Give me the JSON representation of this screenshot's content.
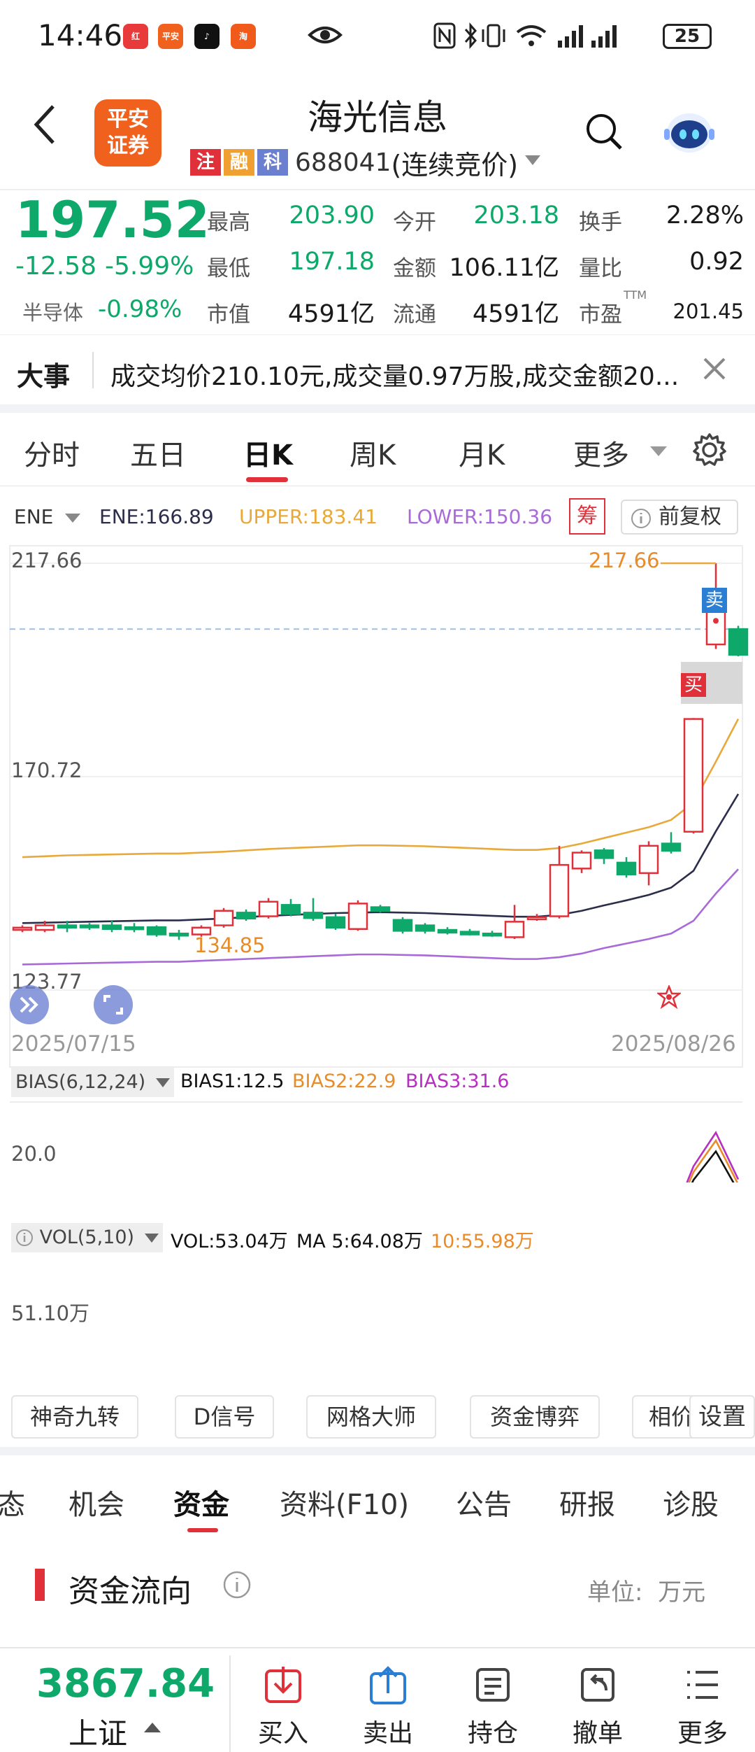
{
  "status": {
    "time": "14:46",
    "battery": "25",
    "app_icons": [
      {
        "name": "app-icon-1",
        "text": "红",
        "color": "#e83a3a"
      },
      {
        "name": "app-icon-2",
        "text": "平安",
        "color": "#f0611e"
      },
      {
        "name": "app-icon-3",
        "text": "♪",
        "color": "#111111"
      },
      {
        "name": "app-icon-4",
        "text": "淘",
        "color": "#f05a1a"
      }
    ]
  },
  "header": {
    "logo_line1": "平安",
    "logo_line2": "证券",
    "title": "海光信息",
    "tags": [
      "注",
      "融",
      "科"
    ],
    "code": "688041",
    "mode": "(连续竞价)"
  },
  "quote": {
    "price": "197.52",
    "change": "-12.58",
    "change_pct": "-5.99%",
    "sector": "半导体",
    "sector_pct": "-0.98%",
    "labels": {
      "high": "最高",
      "low": "最低",
      "mcap": "市值",
      "open": "今开",
      "amount": "金额",
      "float": "流通",
      "turnover": "换手",
      "vol_ratio": "量比",
      "pe": "市盈"
    },
    "values": {
      "high": "203.90",
      "low": "197.18",
      "mcap": "4591亿",
      "open": "203.18",
      "amount": "106.11亿",
      "float": "4591亿",
      "turnover": "2.28%",
      "vol_ratio": "0.92",
      "pe": "201.45"
    },
    "pe_sup": "TTM"
  },
  "news": {
    "label": "大事",
    "text": "成交均价210.10元,成交量0.97万股,成交金额20..."
  },
  "ktabs": [
    {
      "label": "分时",
      "active": false
    },
    {
      "label": "五日",
      "active": false
    },
    {
      "label": "日K",
      "active": true
    },
    {
      "label": "周K",
      "active": false
    },
    {
      "label": "月K",
      "active": false
    },
    {
      "label": "更多",
      "active": false
    }
  ],
  "chart": {
    "indicator": "ENE",
    "ene": "ENE:166.89",
    "upper": "UPPER:183.41",
    "lower": "LOWER:150.36",
    "chou": "筹",
    "fuquan": "前复权",
    "y_high": "217.66",
    "y_mid": "170.72",
    "y_low": "123.77",
    "high_label": "217.66",
    "low_label": "134.85",
    "date_start": "2025/07/15",
    "date_end": "2025/08/26",
    "sell_tag": "卖",
    "buy_tag": "买",
    "colors": {
      "upper": "#e8a93a",
      "ene": "#2b2d4a",
      "lower": "#a86ad8",
      "up": "#e0313b",
      "down": "#0fa86b"
    }
  },
  "chart_data": [
    {
      "type": "candlestick",
      "title": "",
      "x_range": [
        "2025/07/15",
        "2025/08/26"
      ],
      "ylim": [
        123.77,
        217.66
      ],
      "series": [
        {
          "name": "ENE",
          "current": 166.89
        },
        {
          "name": "UPPER",
          "current": 183.41
        },
        {
          "name": "LOWER",
          "current": 150.36
        }
      ],
      "candles": [
        {
          "o": 137,
          "c": 137.5,
          "h": 138,
          "l": 136.5
        },
        {
          "o": 137,
          "c": 138,
          "h": 139,
          "l": 136.5
        },
        {
          "o": 138,
          "c": 137.5,
          "h": 139,
          "l": 136.5
        },
        {
          "o": 138,
          "c": 137.8,
          "h": 138.5,
          "l": 137
        },
        {
          "o": 138,
          "c": 137.2,
          "h": 139,
          "l": 136.5
        },
        {
          "o": 137.6,
          "c": 137.2,
          "h": 138.5,
          "l": 136.5
        },
        {
          "o": 137.6,
          "c": 136,
          "h": 138,
          "l": 135.5
        },
        {
          "o": 136.2,
          "c": 135.8,
          "h": 137,
          "l": 134.8
        },
        {
          "o": 136,
          "c": 137.5,
          "h": 138,
          "l": 135.5
        },
        {
          "o": 138,
          "c": 141.2,
          "h": 141.8,
          "l": 137.5
        },
        {
          "o": 140.8,
          "c": 139.5,
          "h": 141.5,
          "l": 139
        },
        {
          "o": 140,
          "c": 143.2,
          "h": 144,
          "l": 139.5
        },
        {
          "o": 142.5,
          "c": 140.5,
          "h": 143.8,
          "l": 140
        },
        {
          "o": 140.8,
          "c": 139.6,
          "h": 144,
          "l": 139
        },
        {
          "o": 139.8,
          "c": 137.5,
          "h": 140.5,
          "l": 137
        },
        {
          "o": 137.2,
          "c": 142.8,
          "h": 143.5,
          "l": 136.8
        },
        {
          "o": 142,
          "c": 141.2,
          "h": 142.5,
          "l": 140.8
        },
        {
          "o": 139.2,
          "c": 136.8,
          "h": 139.8,
          "l": 136.2
        },
        {
          "o": 138,
          "c": 136.8,
          "h": 138.5,
          "l": 136.2
        },
        {
          "o": 137,
          "c": 136.4,
          "h": 137.6,
          "l": 136
        },
        {
          "o": 136.6,
          "c": 136,
          "h": 137.2,
          "l": 135.8
        },
        {
          "o": 136.2,
          "c": 136,
          "h": 136.8,
          "l": 135.5
        },
        {
          "o": 135.4,
          "c": 138.8,
          "h": 142.5,
          "l": 135
        },
        {
          "o": 139.5,
          "c": 139.8,
          "h": 140.5,
          "l": 139
        },
        {
          "o": 140,
          "c": 151.3,
          "h": 155.5,
          "l": 139.5
        },
        {
          "o": 150.5,
          "c": 154,
          "h": 154.5,
          "l": 149.5
        },
        {
          "o": 154.5,
          "c": 152.8,
          "h": 155,
          "l": 151.5
        },
        {
          "o": 151.8,
          "c": 149.2,
          "h": 153,
          "l": 148.5
        },
        {
          "o": 149.5,
          "c": 155.5,
          "h": 156.5,
          "l": 146.8
        },
        {
          "o": 156,
          "c": 154.4,
          "h": 158.5,
          "l": 153.8
        },
        {
          "o": 158.6,
          "c": 183.4,
          "h": 183.6,
          "l": 158.2
        },
        {
          "o": 199.8,
          "c": 210.1,
          "h": 217.66,
          "l": 198.8
        },
        {
          "o": 203.18,
          "c": 197.52,
          "h": 203.9,
          "l": 197.18
        }
      ],
      "upper": [
        153,
        153.2,
        153.4,
        153.5,
        153.6,
        153.7,
        153.8,
        153.8,
        154,
        154.2,
        154.5,
        154.8,
        155,
        155.2,
        155.4,
        155.6,
        155.6,
        155.5,
        155.4,
        155.2,
        155,
        154.8,
        154.6,
        154.6,
        155,
        156,
        157.2,
        158.4,
        159.6,
        161.2,
        165,
        174,
        183.41
      ],
      "ene": [
        138.5,
        138.6,
        138.7,
        138.8,
        138.9,
        139,
        139.1,
        139.1,
        139.3,
        139.5,
        139.8,
        140.1,
        140.3,
        140.5,
        140.7,
        140.8,
        140.9,
        140.8,
        140.7,
        140.5,
        140.3,
        140.1,
        139.9,
        139.9,
        140.3,
        141.2,
        142.4,
        143.5,
        144.7,
        146.3,
        150,
        158.7,
        166.89
      ],
      "lower": [
        129.4,
        129.5,
        129.6,
        129.7,
        129.8,
        129.9,
        130,
        130,
        130.2,
        130.4,
        130.6,
        130.8,
        131,
        131.2,
        131.4,
        131.6,
        131.6,
        131.5,
        131.4,
        131.2,
        131,
        130.8,
        130.6,
        130.6,
        131,
        131.8,
        133,
        134,
        135,
        136.2,
        139,
        145,
        150.36
      ]
    },
    {
      "type": "line",
      "title": "BIAS(6,12,24)",
      "ylabel": "",
      "series": [
        {
          "name": "BIAS1",
          "current": 12.5,
          "color": "#111111"
        },
        {
          "name": "BIAS2",
          "current": 22.9,
          "color": "#e88c2a"
        },
        {
          "name": "BIAS3",
          "current": 31.6,
          "color": "#b62fc0"
        }
      ],
      "y_tick": "20.0"
    },
    {
      "type": "bar",
      "title": "VOL(5,10)",
      "series": [
        {
          "name": "VOL",
          "current": "53.04万"
        },
        {
          "name": "MA 5",
          "current": "64.08万"
        },
        {
          "name": "10",
          "current": "55.98万"
        }
      ],
      "y_tick": "51.10万"
    }
  ],
  "indicators": {
    "bias_name": "BIAS(6,12,24)",
    "bias1": "BIAS1:12.5",
    "bias2": "BIAS2:22.9",
    "bias3": "BIAS3:31.6",
    "bias_tick": "20.0",
    "vol_name": "VOL(5,10)",
    "vol": "VOL:53.04万",
    "ma5": "MA 5:64.08万",
    "ma10": "10:55.98万",
    "vol_tick": "51.10万"
  },
  "tools": [
    "神奇九转",
    "D信号",
    "网格大师",
    "资金博弈",
    "相价",
    "设置"
  ],
  "btabs": [
    {
      "label": "态",
      "active": false
    },
    {
      "label": "机会",
      "active": false
    },
    {
      "label": "资金",
      "active": true
    },
    {
      "label": "资料(F10)",
      "active": false
    },
    {
      "label": "公告",
      "active": false
    },
    {
      "label": "研报",
      "active": false
    },
    {
      "label": "诊股",
      "active": false
    }
  ],
  "funds": {
    "title": "资金流向",
    "unit": "单位:  万元"
  },
  "bottom": {
    "index_value": "3867.84",
    "index_name": "上证",
    "buttons": [
      "买入",
      "卖出",
      "持仓",
      "撤单",
      "更多"
    ]
  }
}
